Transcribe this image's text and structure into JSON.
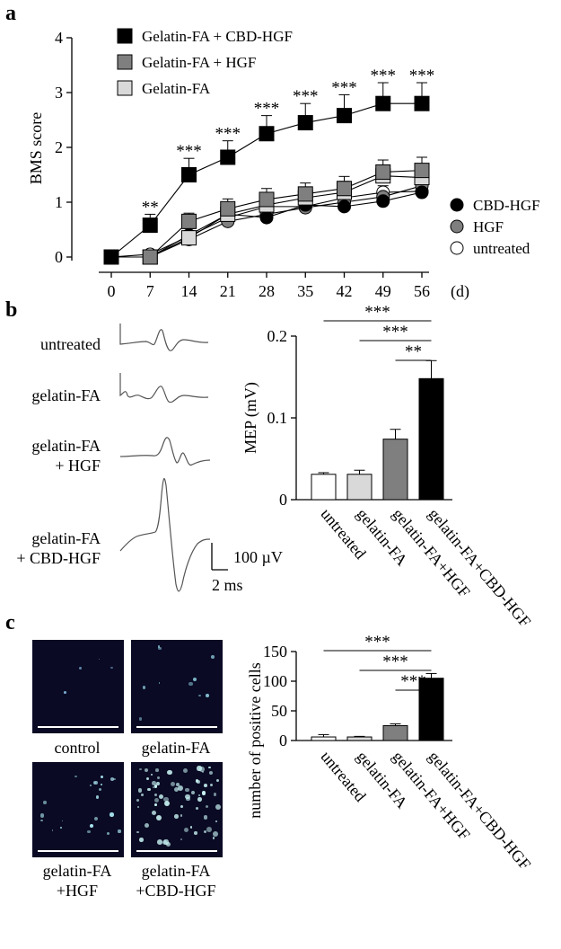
{
  "panels": {
    "a": "a",
    "b": "b",
    "c": "c"
  },
  "chart_data": [
    {
      "type": "line",
      "ylabel": "BMS score",
      "xunit": "(d)",
      "x": [
        0,
        7,
        14,
        21,
        28,
        35,
        42,
        49,
        56
      ],
      "ylim": [
        0,
        4
      ],
      "yticks": [
        0,
        1,
        2,
        3,
        4
      ],
      "legend_top": [
        "Gelatin-FA + CBD-HGF",
        "Gelatin-FA + HGF",
        "Gelatin-FA"
      ],
      "legend_bottom": [
        "CBD-HGF",
        "HGF",
        "untreated"
      ],
      "series": [
        {
          "name": "Gelatin-FA + CBD-HGF",
          "marker": "square",
          "fill": "#000000",
          "values": [
            0,
            0.58,
            1.5,
            1.82,
            2.25,
            2.45,
            2.58,
            2.8,
            2.8
          ],
          "err": [
            0,
            0.2,
            0.3,
            0.3,
            0.33,
            0.35,
            0.38,
            0.38,
            0.38
          ]
        },
        {
          "name": "Gelatin-FA + HGF",
          "marker": "square",
          "fill": "#7f7f7f",
          "values": [
            0,
            0,
            0.65,
            0.88,
            1.05,
            1.15,
            1.25,
            1.55,
            1.58
          ],
          "err": [
            0,
            0,
            0.15,
            0.18,
            0.2,
            0.2,
            0.22,
            0.22,
            0.24
          ]
        },
        {
          "name": "Gelatin-FA",
          "marker": "square",
          "fill": "#d9d9d9",
          "values": [
            0,
            0,
            0.35,
            0.78,
            0.95,
            1.08,
            1.18,
            1.48,
            1.45
          ],
          "err": [
            0,
            0,
            0.12,
            0.15,
            0.18,
            0.18,
            0.2,
            0.2,
            0.22
          ]
        },
        {
          "name": "CBD-HGF",
          "marker": "circle",
          "fill": "#000000",
          "values": [
            0,
            0,
            0.4,
            0.78,
            0.72,
            0.95,
            0.92,
            1.02,
            1.18
          ],
          "err": [
            0,
            0,
            0.12,
            0.2,
            0.15,
            0.18,
            0.18,
            0.15,
            0.1
          ]
        },
        {
          "name": "HGF",
          "marker": "circle",
          "fill": "#7f7f7f",
          "values": [
            0,
            0,
            0.32,
            0.65,
            0.78,
            0.9,
            1.0,
            1.1,
            1.3
          ],
          "err": [
            0,
            0,
            0.1,
            0.15,
            0.15,
            0.15,
            0.15,
            0.15,
            0.15
          ]
        },
        {
          "name": "untreated",
          "marker": "circle",
          "fill": "#ffffff",
          "values": [
            0,
            0.05,
            0.38,
            0.72,
            0.92,
            0.92,
            1.08,
            1.18,
            1.2
          ],
          "err": [
            0,
            0,
            0.1,
            0.15,
            0.15,
            0.15,
            0.15,
            0.12,
            0.12
          ]
        }
      ],
      "significance": {
        "7": "**",
        "14": "***",
        "21": "***",
        "28": "***",
        "35": "***",
        "42": "***",
        "49": "***",
        "56": "***"
      }
    },
    {
      "type": "bar",
      "ylabel": "MEP (mV)",
      "categories": [
        "untreated",
        "gelatin-FA",
        "gelatin-FA+HGF",
        "gelatin-FA+CBD-HGF"
      ],
      "values": [
        0.031,
        0.031,
        0.074,
        0.148
      ],
      "err": [
        0.002,
        0.005,
        0.012,
        0.022
      ],
      "colors": [
        "#ffffff",
        "#d9d9d9",
        "#7f7f7f",
        "#000000"
      ],
      "ylim": [
        0,
        0.2
      ],
      "yticks": [
        "0",
        "0.1",
        "0.2"
      ],
      "brackets": [
        {
          "from": 0,
          "to": 3,
          "label": "***"
        },
        {
          "from": 1,
          "to": 3,
          "label": "***"
        },
        {
          "from": 2,
          "to": 3,
          "label": "**"
        }
      ]
    },
    {
      "type": "bar",
      "ylabel": "number of positive cells",
      "categories": [
        "untreated",
        "gelatin-FA",
        "gelatin-FA+HGF",
        "gelatin-FA+CBD-HGF"
      ],
      "values": [
        6,
        6,
        25,
        105
      ],
      "err": [
        4,
        1,
        3,
        8
      ],
      "colors": [
        "#ffffff",
        "#d9d9d9",
        "#7f7f7f",
        "#000000"
      ],
      "ylim": [
        0,
        150
      ],
      "yticks": [
        "0",
        "50",
        "100",
        "150"
      ],
      "brackets": [
        {
          "from": 0,
          "to": 3,
          "label": "***"
        },
        {
          "from": 1,
          "to": 3,
          "label": "***"
        },
        {
          "from": 2,
          "to": 3,
          "label": "***"
        }
      ]
    }
  ],
  "traces": {
    "labels": [
      "untreated",
      "gelatin-FA",
      "gelatin-FA\n+ HGF",
      "gelatin-FA\n+ CBD-HGF"
    ],
    "scale_amplitude": "100 µV",
    "scale_time": "2 ms"
  },
  "images": {
    "labels": [
      "control",
      "gelatin-FA",
      "gelatin-FA\n+HGF",
      "gelatin-FA\n+CBD-HGF"
    ]
  }
}
